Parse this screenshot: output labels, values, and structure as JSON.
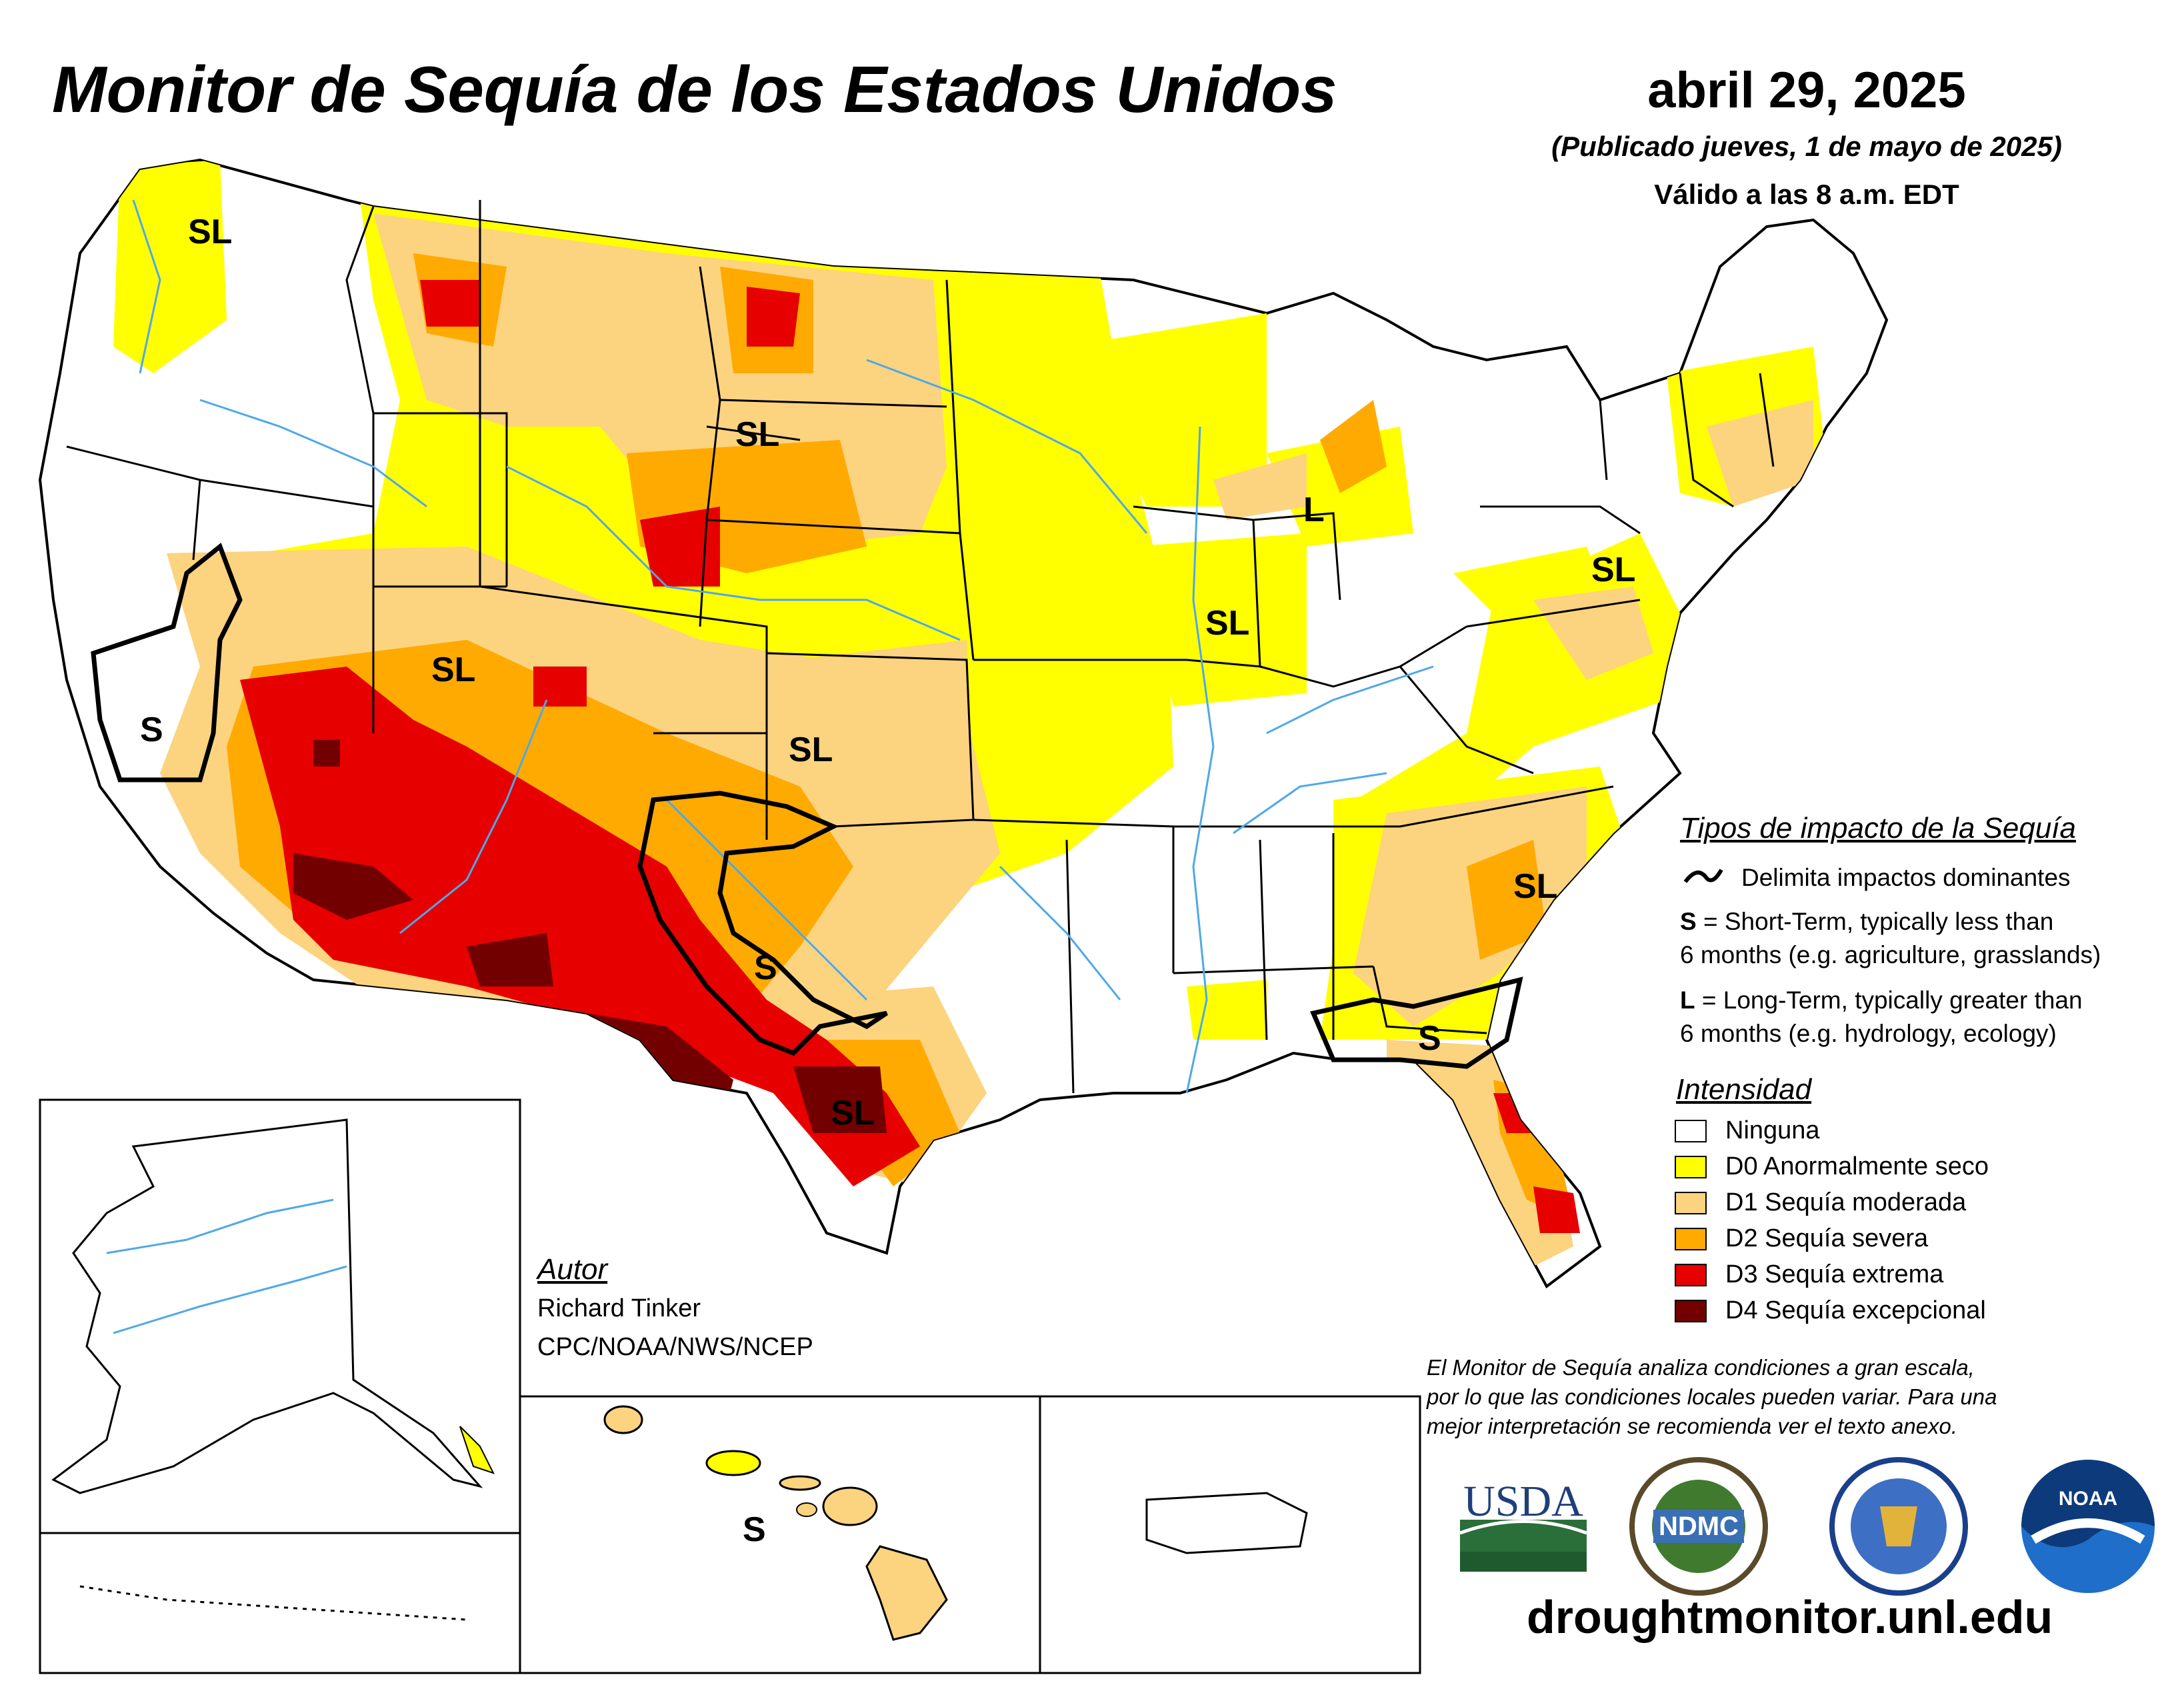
{
  "header": {
    "title": "Monitor de Sequía de los Estados Unidos",
    "date": "abril 29, 2025",
    "published": "(Publicado jueves, 1 de mayo de 2025)",
    "valid": "Válido a las 8 a.m. EDT"
  },
  "map_labels": {
    "sl_nw": "SL",
    "sl_sd": "SL",
    "l_mi": "L",
    "sl_ut": "SL",
    "s_ca": "S",
    "sl_il": "SL",
    "sl_ks": "SL",
    "sl_pa": "SL",
    "s_tx": "S",
    "sl_tx": "SL",
    "sl_sc": "SL",
    "s_ga": "S",
    "s_hi": "S"
  },
  "impacts": {
    "title": "Tipos de impacto de la Sequía",
    "delimit": "Delimita impactos dominantes",
    "s_key": "S",
    "s_line1": " = Short-Term, typically less than",
    "s_line2": "6 months (e.g. agriculture, grasslands)",
    "l_key": "L",
    "l_line1": " = Long-Term, typically greater than",
    "l_line2": "6 months (e.g. hydrology, ecology)"
  },
  "intensity": {
    "title": "Intensidad",
    "items": [
      {
        "label": "Ninguna",
        "color": "#ffffff"
      },
      {
        "label": "D0 Anormalmente seco",
        "color": "#ffff00"
      },
      {
        "label": "D1 Sequía moderada",
        "color": "#fcd37f"
      },
      {
        "label": "D2 Sequía severa",
        "color": "#ffaa00"
      },
      {
        "label": "D3 Sequía extrema",
        "color": "#e60000"
      },
      {
        "label": "D4 Sequía excepcional",
        "color": "#730000"
      }
    ]
  },
  "author": {
    "title": "Autor",
    "name": "Richard Tinker",
    "org": "CPC/NOAA/NWS/NCEP"
  },
  "disclaimer": {
    "line1": "El Monitor de Sequía analiza condiciones a gran escala,",
    "line2": "por lo que las condiciones locales pueden variar. Para una",
    "line3": "mejor interpretación se recomienda ver el texto anexo."
  },
  "logos": {
    "usda": "USDA",
    "ndmc": "NDMC",
    "noaa": "NOAA"
  },
  "url": "droughtmonitor.unl.edu",
  "colors": {
    "none": "#ffffff",
    "d0": "#ffff00",
    "d1": "#fcd37f",
    "d2": "#ffaa00",
    "d3": "#e60000",
    "d4": "#730000",
    "water": "#4ea8e8"
  }
}
